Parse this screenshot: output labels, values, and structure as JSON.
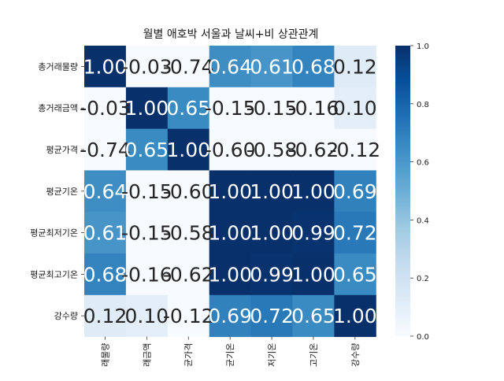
{
  "chart_data": {
    "type": "heatmap",
    "title": "월별 애호박 서울과 날씨+비 상관관계",
    "row_labels": [
      "총거래물량",
      "총거래금액",
      "평균가격",
      "평균기온",
      "평균최저기온",
      "평균최고기온",
      "강수량"
    ],
    "column_labels": [
      "래물량",
      "래금액",
      "균가격",
      "균기온",
      "저기온",
      "고기온",
      "강수량"
    ],
    "values": [
      [
        1.0,
        -0.03,
        -0.74,
        0.64,
        0.61,
        0.68,
        0.12
      ],
      [
        -0.03,
        1.0,
        0.65,
        -0.15,
        -0.15,
        -0.16,
        0.1
      ],
      [
        -0.74,
        0.65,
        1.0,
        -0.6,
        -0.58,
        -0.62,
        -0.12
      ],
      [
        0.64,
        -0.15,
        -0.6,
        1.0,
        1.0,
        1.0,
        0.69
      ],
      [
        0.61,
        -0.15,
        -0.58,
        1.0,
        1.0,
        0.99,
        0.72
      ],
      [
        0.68,
        -0.16,
        -0.62,
        1.0,
        0.99,
        1.0,
        0.65
      ],
      [
        0.12,
        0.1,
        -0.12,
        0.69,
        0.72,
        0.65,
        1.0
      ]
    ],
    "colorscale": "Blues",
    "color_range": [
      0.0,
      1.0
    ],
    "colorbar_ticks": [
      "0.0",
      "0.2",
      "0.4",
      "0.6",
      "0.8",
      "1.0"
    ]
  }
}
